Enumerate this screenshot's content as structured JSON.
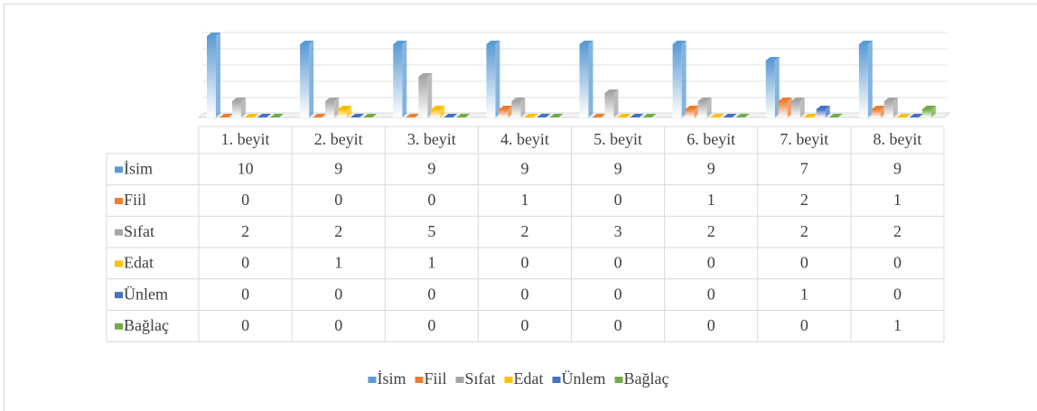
{
  "chart_data": {
    "type": "bar3d",
    "categories": [
      "1. beyit",
      "2. beyit",
      "3. beyit",
      "4. beyit",
      "5. beyit",
      "6. beyit",
      "7. beyit",
      "8. beyit"
    ],
    "series": [
      {
        "name": "İsim",
        "color": "#5b9bd5",
        "values": [
          10,
          9,
          9,
          9,
          9,
          9,
          7,
          9
        ]
      },
      {
        "name": "Fiil",
        "color": "#ed7d31",
        "values": [
          0,
          0,
          0,
          1,
          0,
          1,
          2,
          1
        ]
      },
      {
        "name": "Sıfat",
        "color": "#a5a5a5",
        "values": [
          2,
          2,
          5,
          2,
          3,
          2,
          2,
          2
        ]
      },
      {
        "name": "Edat",
        "color": "#ffc000",
        "values": [
          0,
          1,
          1,
          0,
          0,
          0,
          0,
          0
        ]
      },
      {
        "name": "Ünlem",
        "color": "#4472c4",
        "values": [
          0,
          0,
          0,
          0,
          0,
          0,
          1,
          0
        ]
      },
      {
        "name": "Bağlaç",
        "color": "#70ad47",
        "values": [
          0,
          0,
          0,
          0,
          0,
          0,
          0,
          1
        ]
      }
    ],
    "ylim": [
      0,
      10
    ],
    "yticks": [
      0,
      2,
      4,
      6,
      8,
      10
    ],
    "grid": true,
    "legend": "bottom"
  }
}
